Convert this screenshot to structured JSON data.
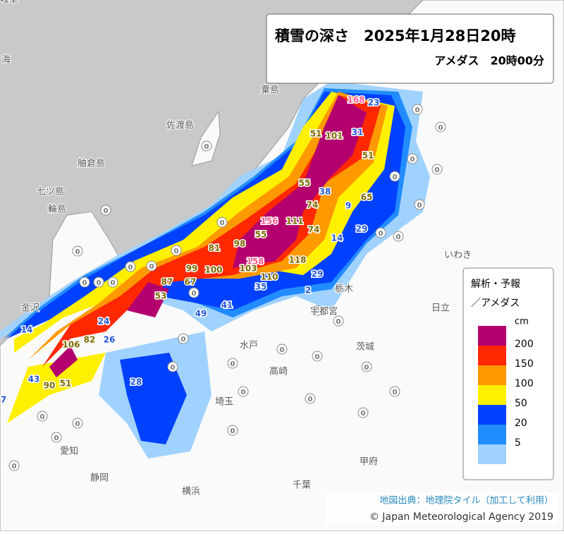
{
  "header": {
    "title": "積雪の深さ　2025年1月28日20時",
    "subtitle": "アメダス　20時00分"
  },
  "legend": {
    "title": "解析・予報",
    "subtitle": "／アメダス",
    "unit": "cm",
    "levels": [
      {
        "value": 200,
        "color": "#b4006e"
      },
      {
        "value": 150,
        "color": "#ff2800"
      },
      {
        "value": 100,
        "color": "#ff9900"
      },
      {
        "value": 50,
        "color": "#fff000"
      },
      {
        "value": 20,
        "color": "#0041ff"
      },
      {
        "value": 5,
        "color": "#218cff"
      }
    ],
    "lowest_color": "#a0d2ff"
  },
  "stations": [
    168,
    23,
    51,
    101,
    31,
    51,
    55,
    38,
    65,
    9,
    74,
    111,
    156,
    55,
    74,
    29,
    14,
    81,
    98,
    158,
    103,
    118,
    99,
    100,
    87,
    67,
    53,
    110,
    35,
    29,
    2,
    41,
    49,
    14,
    24,
    106,
    82,
    26,
    43,
    90,
    51,
    28,
    7,
    0,
    0,
    0,
    0,
    0,
    0,
    0,
    0,
    0,
    0,
    0,
    0,
    0,
    0,
    0,
    0,
    0,
    0,
    0,
    0,
    0,
    0,
    0,
    0,
    0,
    0,
    0,
    0,
    0,
    0,
    0,
    0,
    0,
    0,
    0,
    0
  ],
  "places": [
    "海",
    "佐渡島",
    "粟島",
    "舳倉島",
    "七ツ島",
    "輪島",
    "金沢",
    "栃木",
    "宇都宮",
    "日立",
    "いわき",
    "水戸",
    "茨城",
    "高崎",
    "埼玉",
    "甲府",
    "千葉",
    "横浜",
    "静岡",
    "愛知",
    "岐阜"
  ],
  "credits": {
    "map": "地図出典：地理院タイル（加工して利用）",
    "copyright": "© Japan Meteorological Agency 2019"
  }
}
